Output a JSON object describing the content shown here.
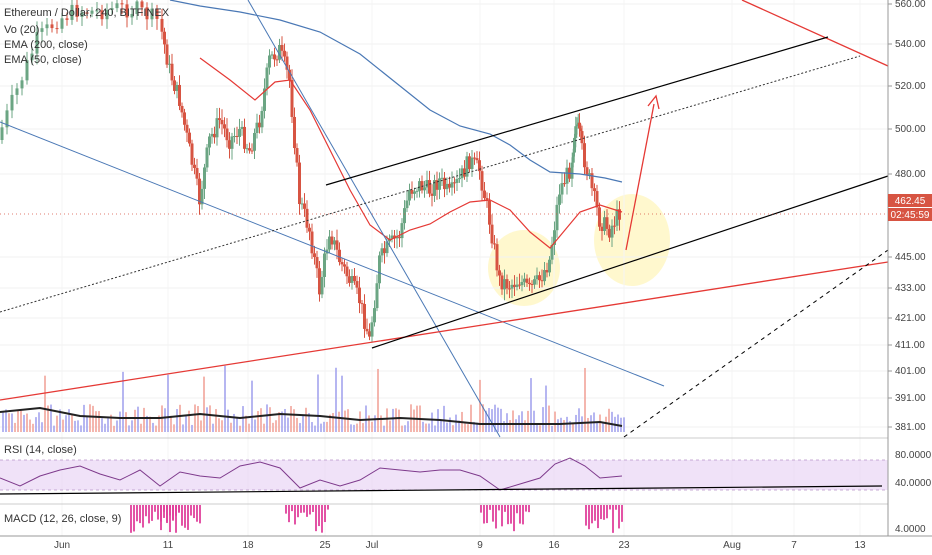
{
  "chart_data": {
    "type": "candlestick",
    "title": "Ethereum / Dollar, 240, BITFINEX",
    "indicators": [
      "Vo (20)",
      "EMA (200, close)",
      "EMA (50, close)"
    ],
    "price_axis": {
      "ticks": [
        560,
        540,
        520,
        500,
        480,
        462.45,
        445,
        433,
        421,
        411,
        401,
        391,
        381
      ],
      "tick_labels": [
        "560.00",
        "540.00",
        "520.00",
        "500.00",
        "480.00",
        "462.45",
        "445.00",
        "433.00",
        "421.00",
        "411.00",
        "401.00",
        "391.00",
        "381.00"
      ],
      "last_price": "462.45",
      "countdown": "02:45:59"
    },
    "x_axis": {
      "labels": [
        "Jun",
        "11",
        "18",
        "25",
        "Jul",
        "9",
        "16",
        "23",
        "Aug",
        "7",
        "13"
      ]
    },
    "rsi": {
      "label": "RSI (14, close)",
      "ticks": [
        "80.0000",
        "40.0000"
      ]
    },
    "macd": {
      "label": "MACD (12, 26, close, 9)",
      "ticks": [
        "4.0000"
      ]
    },
    "colors": {
      "up": "#6ba583",
      "down": "#d75442",
      "ema50": "#e53935",
      "ema200": "#4a78b5",
      "trend_red": "#e53935",
      "trend_blue": "#4a78b5",
      "channel": "#000000",
      "rsi_band": "#e9d5f5",
      "rsi_line": "#7e3a8c",
      "highlight": "#fff6c2"
    }
  }
}
